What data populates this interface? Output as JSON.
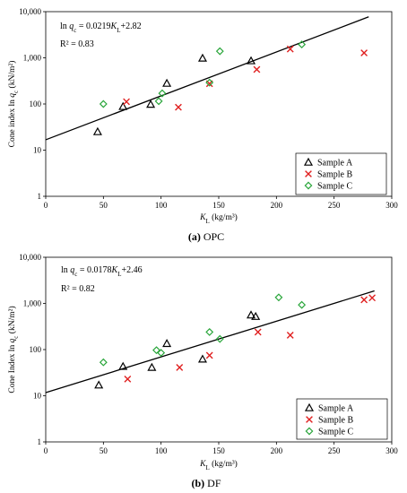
{
  "chart_data": [
    {
      "type": "scatter",
      "caption_letter": "(a)",
      "caption_text": " OPC",
      "ylabel_pre": "Cone index ln ",
      "ylabel_var": "q",
      "ylabel_sub": "c",
      "ylabel_post": " (kN/m²)",
      "xlabel_var": "K",
      "xlabel_sub": "L",
      "xlabel_post": " (kg/m³)",
      "equation_pre": "ln ",
      "equation_var": "q",
      "equation_sub": "c",
      "equation_mid": " = 0.0219",
      "equation_var2": "K",
      "equation_sub2": "L",
      "equation_post": "+2.82",
      "r2_label": "R² = 0.83",
      "xlim": [
        0,
        300
      ],
      "ylim_log": [
        1,
        10000
      ],
      "x_ticks": [
        "0",
        "50",
        "100",
        "150",
        "200",
        "250",
        "300"
      ],
      "y_ticks": [
        "1",
        "10",
        "100",
        "1,000",
        "10,000"
      ],
      "y_scale": "log",
      "fit": {
        "slope": 0.0219,
        "intercept": 2.82,
        "x_range": [
          0,
          280
        ]
      },
      "legend_position": "bottom-right",
      "series": [
        {
          "name": "Sample A",
          "marker": "triangle",
          "color": "#000000",
          "points": [
            [
              45,
              25
            ],
            [
              67,
              88
            ],
            [
              91,
              98
            ],
            [
              105,
              280
            ],
            [
              136,
              980
            ],
            [
              178,
              860
            ]
          ]
        },
        {
          "name": "Sample B",
          "marker": "x",
          "color": "#e02020",
          "points": [
            [
              70,
              112
            ],
            [
              115,
              85
            ],
            [
              142,
              275
            ],
            [
              183,
              560
            ],
            [
              212,
              1550
            ],
            [
              276,
              1280
            ]
          ]
        },
        {
          "name": "Sample C",
          "marker": "diamond",
          "color": "#2aa63b",
          "points": [
            [
              50,
              100
            ],
            [
              98,
              115
            ],
            [
              101,
              170
            ],
            [
              142,
              290
            ],
            [
              151,
              1390
            ],
            [
              222,
              1950
            ]
          ]
        }
      ]
    },
    {
      "type": "scatter",
      "caption_letter": "(b)",
      "caption_text": " DF",
      "ylabel_pre": "Cone Index ln ",
      "ylabel_var": "q",
      "ylabel_sub": "c",
      "ylabel_post": " (kN/m²)",
      "xlabel_var": "K",
      "xlabel_sub": "L",
      "xlabel_post": " (kg/m³)",
      "equation_pre": "ln ",
      "equation_var": "q",
      "equation_sub": "c",
      "equation_mid": " = 0.0178",
      "equation_var2": "K",
      "equation_sub2": "L",
      "equation_post": "+2.46",
      "r2_label": "R² = 0.82",
      "xlim": [
        0,
        300
      ],
      "ylim_log": [
        1,
        10000
      ],
      "x_ticks": [
        "0",
        "50",
        "100",
        "150",
        "200",
        "250",
        "300"
      ],
      "y_ticks": [
        "1",
        "10",
        "100",
        "1,000",
        "10,000"
      ],
      "y_scale": "log",
      "fit": {
        "slope": 0.0178,
        "intercept": 2.46,
        "x_range": [
          0,
          285
        ]
      },
      "legend_position": "bottom-right",
      "series": [
        {
          "name": "Sample A",
          "marker": "triangle",
          "color": "#000000",
          "points": [
            [
              46,
              17
            ],
            [
              67,
              43
            ],
            [
              92,
              41
            ],
            [
              105,
              135
            ],
            [
              136,
              62
            ],
            [
              178,
              560
            ],
            [
              182,
              520
            ]
          ]
        },
        {
          "name": "Sample B",
          "marker": "x",
          "color": "#e02020",
          "points": [
            [
              71,
              23
            ],
            [
              116,
              41
            ],
            [
              142,
              75
            ],
            [
              184,
              240
            ],
            [
              212,
              205
            ],
            [
              276,
              1200
            ],
            [
              283,
              1320
            ]
          ]
        },
        {
          "name": "Sample C",
          "marker": "diamond",
          "color": "#2aa63b",
          "points": [
            [
              50,
              53
            ],
            [
              96,
              97
            ],
            [
              100,
              85
            ],
            [
              142,
              240
            ],
            [
              151,
              170
            ],
            [
              202,
              1350
            ],
            [
              222,
              930
            ]
          ]
        }
      ]
    }
  ]
}
